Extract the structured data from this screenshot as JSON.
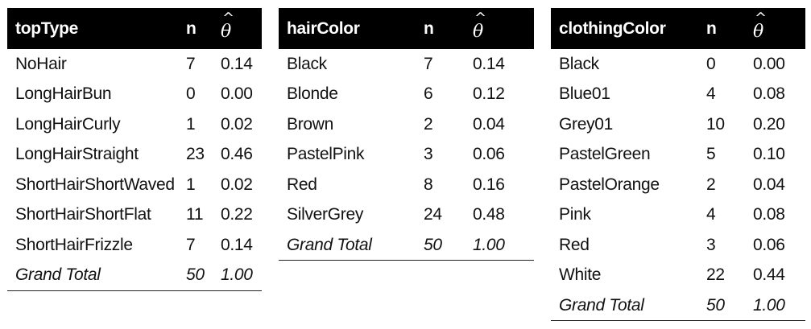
{
  "tables": [
    {
      "headers": [
        "topType",
        "n",
        "^",
        "θ"
      ],
      "rows": [
        [
          "NoHair",
          "7",
          "0.14"
        ],
        [
          "LongHairBun",
          "0",
          "0.00"
        ],
        [
          "LongHairCurly",
          "1",
          "0.02"
        ],
        [
          "LongHairStraight",
          "23",
          "0.46"
        ],
        [
          "ShortHairShortWaved",
          "1",
          "0.02"
        ],
        [
          "ShortHairShortFlat",
          "11",
          "0.22"
        ],
        [
          "ShortHairFrizzle",
          "7",
          "0.14"
        ]
      ],
      "total": [
        "Grand Total",
        "50",
        "1.00"
      ]
    },
    {
      "headers": [
        "hairColor",
        "n",
        "^",
        "θ"
      ],
      "rows": [
        [
          "Black",
          "7",
          "0.14"
        ],
        [
          "Blonde",
          "6",
          "0.12"
        ],
        [
          "Brown",
          "2",
          "0.04"
        ],
        [
          "PastelPink",
          "3",
          "0.06"
        ],
        [
          "Red",
          "8",
          "0.16"
        ],
        [
          "SilverGrey",
          "24",
          "0.48"
        ]
      ],
      "total": [
        "Grand Total",
        "50",
        "1.00"
      ]
    },
    {
      "headers": [
        "clothingColor",
        "n",
        "^",
        "θ"
      ],
      "rows": [
        [
          "Black",
          "0",
          "0.00"
        ],
        [
          "Blue01",
          "4",
          "0.08"
        ],
        [
          "Grey01",
          "10",
          "0.20"
        ],
        [
          "PastelGreen",
          "5",
          "0.10"
        ],
        [
          "PastelOrange",
          "2",
          "0.04"
        ],
        [
          "Pink",
          "4",
          "0.08"
        ],
        [
          "Red",
          "3",
          "0.06"
        ],
        [
          "White",
          "22",
          "0.44"
        ]
      ],
      "total": [
        "Grand Total",
        "50",
        "1.00"
      ]
    }
  ]
}
